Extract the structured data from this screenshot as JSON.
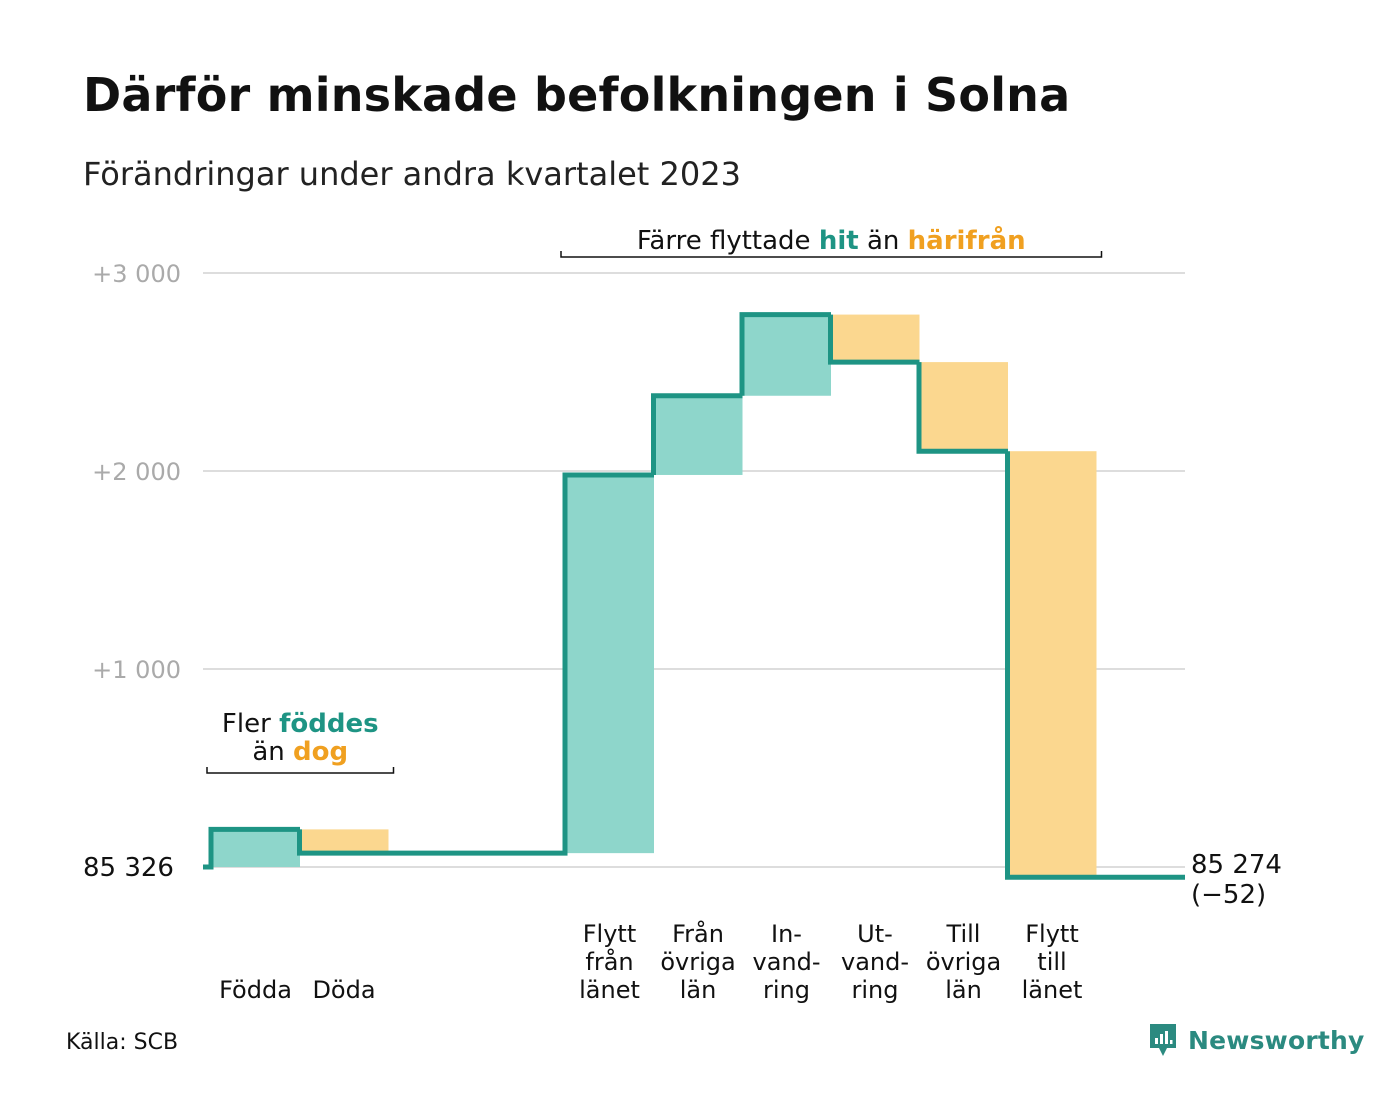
{
  "title": "Därför minskade befolkningen i Solna",
  "subtitle": "Förändringar under andra kvartalet 2023",
  "source": "Källa: SCB",
  "brand": "Newsworthy",
  "chart_data": {
    "type": "waterfall",
    "baseline": 85326,
    "baseline_label": "85 326",
    "end_value": 85274,
    "end_label": "85 274",
    "end_change_label": "(−52)",
    "ylim": [
      -60,
      3000
    ],
    "y_ticks": [
      {
        "value": 1000,
        "label": "+1 000"
      },
      {
        "value": 2000,
        "label": "+2 000"
      },
      {
        "value": 3000,
        "label": "+3 000"
      }
    ],
    "categories": [
      {
        "label": [
          "Födda"
        ],
        "change": 190
      },
      {
        "label": [
          "Döda"
        ],
        "change": -120
      },
      {
        "label": [
          "Flytt",
          "från",
          "länet"
        ],
        "change": 1910,
        "gap_before": true
      },
      {
        "label": [
          "Från",
          "övriga",
          "län"
        ],
        "change": 400
      },
      {
        "label": [
          "In-",
          "vand-",
          "ring"
        ],
        "change": 410
      },
      {
        "label": [
          "Ut-",
          "vand-",
          "ring"
        ],
        "change": -240
      },
      {
        "label": [
          "Till",
          "övriga",
          "län"
        ],
        "change": -450
      },
      {
        "label": [
          "Flytt",
          "till",
          "länet"
        ],
        "change": -2152
      }
    ],
    "colors": {
      "increase_fill": "#8ed6cb",
      "decrease_fill": "#fbd78f",
      "line": "#1e9484",
      "grid": "#dddddd",
      "hit_text": "#1e9484",
      "away_text": "#f0a020"
    },
    "annotations": [
      {
        "parts": [
          {
            "text": "Fler ",
            "style": "plain"
          },
          {
            "text": "föddes",
            "style": "hit"
          },
          {
            "text": "än ",
            "style": "plain",
            "newline": true
          },
          {
            "text": "dog",
            "style": "away"
          }
        ],
        "spans": [
          0,
          1
        ]
      },
      {
        "parts": [
          {
            "text": "Färre flyttade ",
            "style": "plain"
          },
          {
            "text": "hit",
            "style": "hit"
          },
          {
            "text": " än ",
            "style": "plain"
          },
          {
            "text": "härifrån",
            "style": "away"
          }
        ],
        "spans": [
          2,
          7
        ]
      }
    ]
  }
}
